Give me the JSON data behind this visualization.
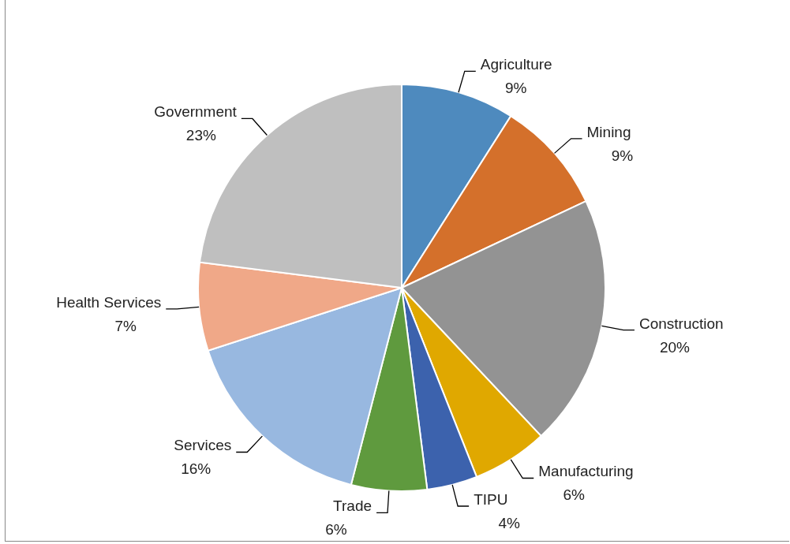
{
  "chart_data": {
    "type": "pie",
    "categories": [
      "Agriculture",
      "Mining",
      "Construction",
      "Manufacturing",
      "TIPU",
      "Trade",
      "Services",
      "Health Services",
      "Government"
    ],
    "values": [
      9,
      9,
      20,
      6,
      4,
      6,
      16,
      7,
      23
    ],
    "value_labels": [
      "9%",
      "9%",
      "20%",
      "6%",
      "4%",
      "6%",
      "16%",
      "7%",
      "23%"
    ],
    "colors": [
      "#4e8abe",
      "#d4702b",
      "#939393",
      "#e0a800",
      "#3c62ad",
      "#5f9a3e",
      "#98b8e0",
      "#f0a888",
      "#bfbfbf"
    ],
    "legend": false
  }
}
